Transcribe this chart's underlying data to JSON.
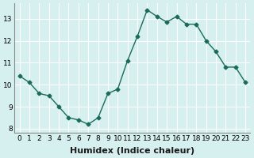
{
  "x": [
    0,
    1,
    2,
    3,
    4,
    5,
    6,
    7,
    8,
    9,
    10,
    11,
    12,
    13,
    14,
    15,
    16,
    17,
    18,
    19,
    20,
    21,
    22,
    23
  ],
  "y": [
    10.4,
    10.1,
    9.6,
    9.5,
    9.0,
    8.5,
    8.4,
    8.2,
    8.5,
    9.6,
    9.8,
    11.1,
    12.2,
    13.4,
    13.1,
    12.85,
    13.1,
    12.75,
    12.75,
    12.0,
    11.5,
    10.8,
    10.8,
    10.1
  ],
  "xlabel": "Humidex (Indice chaleur)",
  "ylabel": "",
  "xlim": [
    -0.5,
    23.5
  ],
  "ylim": [
    7.8,
    13.7
  ],
  "yticks": [
    8,
    9,
    10,
    11,
    12,
    13
  ],
  "xticks": [
    0,
    1,
    2,
    3,
    4,
    5,
    6,
    7,
    8,
    9,
    10,
    11,
    12,
    13,
    14,
    15,
    16,
    17,
    18,
    19,
    20,
    21,
    22,
    23
  ],
  "line_color": "#1a6b5a",
  "marker_color": "#1a6b5a",
  "bg_color": "#d6f0f0",
  "grid_color": "#ffffff",
  "tick_fontsize": 6.5,
  "label_fontsize": 8
}
